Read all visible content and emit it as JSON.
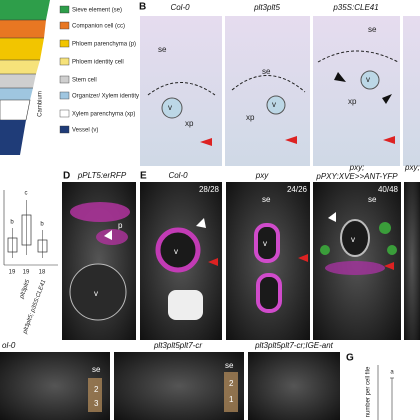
{
  "schematic": {
    "axis_label": "Cambium",
    "legend": [
      "Sieve element (se)",
      "Companion cell (cc)",
      "Phloem parenchyma (p)",
      "Phloem identity cell",
      "Stem cell",
      "Organizer/ Xylem identity cell",
      "Xylem parenchyma (xp)",
      "Vessel (v)"
    ]
  },
  "panel_b": {
    "label": "B",
    "images": [
      {
        "title": "Col-0",
        "labels": [
          "se",
          "v",
          "xp"
        ]
      },
      {
        "title": "plt3plt5",
        "labels": [
          "se",
          "v",
          "xp"
        ]
      },
      {
        "title": "p35S:CLE41",
        "labels": [
          "se",
          "v",
          "xp"
        ]
      }
    ]
  },
  "boxplot": {
    "letters": [
      "b",
      "c",
      "b"
    ],
    "n": [
      "19",
      "19",
      "18"
    ],
    "groups": [
      "plt3plt5",
      "plt3plt5; p35S:CLE41"
    ]
  },
  "panel_d": {
    "label": "D",
    "title": "pPLT5:erRFP",
    "labels": [
      "p",
      "v"
    ]
  },
  "panel_e": {
    "label": "E",
    "images": [
      {
        "title": "Col-0",
        "count": "28/28",
        "labels": [
          "v"
        ]
      },
      {
        "title": "pxy",
        "count": "24/26",
        "labels": [
          "se",
          "v"
        ]
      },
      {
        "title_lines": [
          "pxy;",
          "pPXY:XVE>>ANT-YFP"
        ],
        "count": "40/48",
        "labels": [
          "se",
          "v"
        ]
      },
      {
        "title": "pxy;"
      }
    ]
  },
  "panel_f": {
    "titles": [
      "ol-0",
      "plt3plt5plt7-cr",
      "plt3plt5plt7-cr;IGE-ant"
    ],
    "labels": [
      "se",
      "2",
      "3",
      "se",
      "2",
      "1"
    ]
  },
  "panel_g": {
    "label": "G",
    "axis_label": "number per cell file",
    "letter": "a"
  }
}
